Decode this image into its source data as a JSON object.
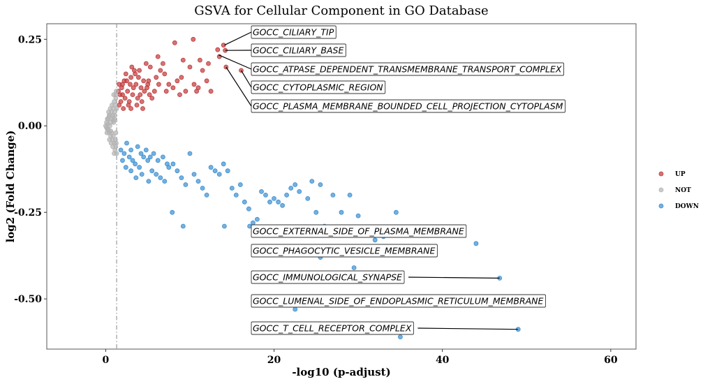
{
  "chart_data": {
    "type": "scatter",
    "title": "GSVA for Cellular Component in GO Database",
    "xlabel": "-log10 (p-adjust)",
    "ylabel": "log2 (Fold Change)",
    "xlim": [
      -7,
      63
    ],
    "ylim": [
      -0.645,
      0.295
    ],
    "xticks": [
      0,
      20,
      40,
      60
    ],
    "xtick_labels": [
      "0",
      "20",
      "40",
      "60"
    ],
    "yticks": [
      0.25,
      0,
      -0.25,
      -0.5
    ],
    "ytick_labels": [
      "0.25",
      "0.00",
      "-0.25",
      "-0.50"
    ],
    "threshold_x": 1.3,
    "grid": false,
    "legend": {
      "placement": "right",
      "entries": [
        {
          "label": "UP",
          "color": "#c0393b"
        },
        {
          "label": "NOT",
          "color": "#b3b3b3"
        },
        {
          "label": "DOWN",
          "color": "#3a8fd1"
        }
      ]
    },
    "colors": {
      "UP": "#c0393b",
      "NOT": "#b3b3b3",
      "DOWN": "#3a8fd1"
    },
    "series": [
      {
        "group": "UP",
        "points": [
          [
            2,
            0.12
          ],
          [
            2.5,
            0.13
          ],
          [
            3,
            0.14
          ],
          [
            3.2,
            0.09
          ],
          [
            2.8,
            0.07
          ],
          [
            3.5,
            0.15
          ],
          [
            4,
            0.16
          ],
          [
            4.2,
            0.11
          ],
          [
            4.5,
            0.13
          ],
          [
            5,
            0.12
          ],
          [
            5.2,
            0.09
          ],
          [
            5.5,
            0.08
          ],
          [
            5.8,
            0.1
          ],
          [
            6,
            0.14
          ],
          [
            6.5,
            0.16
          ],
          [
            7,
            0.15
          ],
          [
            7.5,
            0.12
          ],
          [
            8,
            0.11
          ],
          [
            8.5,
            0.13
          ],
          [
            9,
            0.14
          ],
          [
            9.5,
            0.1
          ],
          [
            10,
            0.17
          ],
          [
            10.5,
            0.12
          ],
          [
            11,
            0.11
          ],
          [
            12,
            0.13
          ],
          [
            12.5,
            0.1
          ],
          [
            4.8,
            0.18
          ],
          [
            5.3,
            0.17
          ],
          [
            6.2,
            0.2
          ],
          [
            6.8,
            0.18
          ],
          [
            8.2,
            0.24
          ],
          [
            9.2,
            0.19
          ],
          [
            10.4,
            0.25
          ],
          [
            11.2,
            0.19
          ],
          [
            12.2,
            0.18
          ],
          [
            13.3,
            0.22
          ],
          [
            13.5,
            0.2
          ],
          [
            14,
            0.233
          ],
          [
            14.2,
            0.218
          ],
          [
            14.3,
            0.17
          ],
          [
            16.1,
            0.16
          ],
          [
            1.6,
            0.06
          ],
          [
            1.8,
            0.07
          ],
          [
            1.7,
            0.09
          ],
          [
            2.1,
            0.05
          ],
          [
            2.3,
            0.08
          ],
          [
            2.6,
            0.1
          ],
          [
            2.9,
            0.12
          ],
          [
            3.3,
            0.11
          ],
          [
            3.6,
            0.12
          ],
          [
            3.8,
            0.08
          ],
          [
            4.1,
            0.09
          ],
          [
            4.3,
            0.07
          ],
          [
            4.6,
            0.1
          ],
          [
            4.9,
            0.11
          ],
          [
            5.1,
            0.13
          ],
          [
            1.9,
            0.11
          ],
          [
            2.2,
            0.13
          ],
          [
            2.4,
            0.15
          ],
          [
            3.1,
            0.17
          ],
          [
            3.4,
            0.16
          ],
          [
            3.9,
            0.14
          ],
          [
            1.5,
            0.1
          ],
          [
            1.6,
            0.12
          ],
          [
            2.0,
            0.09
          ],
          [
            2.7,
            0.06
          ],
          [
            3.0,
            0.05
          ],
          [
            3.7,
            0.06
          ],
          [
            4.4,
            0.05
          ],
          [
            6.3,
            0.12
          ],
          [
            7.2,
            0.1
          ],
          [
            8.8,
            0.09
          ],
          [
            11.5,
            0.16
          ],
          [
            10.8,
            0.1
          ]
        ]
      },
      {
        "group": "NOT",
        "points": [
          [
            0,
            0
          ],
          [
            0.1,
            0.01
          ],
          [
            0.2,
            -0.01
          ],
          [
            0.3,
            0.02
          ],
          [
            0.4,
            -0.02
          ],
          [
            0.5,
            0.03
          ],
          [
            0.6,
            -0.03
          ],
          [
            0.7,
            0.04
          ],
          [
            0.8,
            -0.04
          ],
          [
            0.9,
            0.05
          ],
          [
            1.0,
            -0.05
          ],
          [
            1.1,
            0.06
          ],
          [
            1.2,
            -0.06
          ],
          [
            0.5,
            0.0
          ],
          [
            0.3,
            -0.01
          ],
          [
            0.8,
            0.02
          ],
          [
            1.0,
            0.07
          ],
          [
            1.1,
            -0.07
          ],
          [
            1.2,
            0.08
          ],
          [
            0.6,
            0.01
          ],
          [
            0.4,
            0.03
          ],
          [
            0.7,
            -0.02
          ],
          [
            0.9,
            -0.03
          ],
          [
            1.05,
            0.04
          ],
          [
            1.15,
            -0.04
          ],
          [
            0.2,
            0.02
          ],
          [
            0.15,
            -0.02
          ],
          [
            0.95,
            0.09
          ],
          [
            1.25,
            0.1
          ],
          [
            1.3,
            -0.08
          ],
          [
            0.85,
            -0.06
          ],
          [
            0.75,
            0.06
          ],
          [
            0.65,
            -0.05
          ],
          [
            0.55,
            0.05
          ],
          [
            0.45,
            -0.04
          ],
          [
            0.35,
            0.04
          ],
          [
            1.0,
            -0.08
          ],
          [
            1.2,
            0.09
          ],
          [
            1.1,
            0.03
          ],
          [
            1.2,
            -0.02
          ],
          [
            0.95,
            0.01
          ],
          [
            0.85,
            0.03
          ],
          [
            1.3,
            0.05
          ],
          [
            1.25,
            -0.05
          ],
          [
            1.0,
            0.02
          ],
          [
            0.1,
            -0.005
          ],
          [
            0.25,
            0.005
          ],
          [
            0.6,
            -0.015
          ],
          [
            0.9,
            0.015
          ]
        ]
      },
      {
        "group": "DOWN",
        "points": [
          [
            1.8,
            -0.07
          ],
          [
            2.2,
            -0.08
          ],
          [
            2.8,
            -0.09
          ],
          [
            3.2,
            -0.1
          ],
          [
            3.5,
            -0.11
          ],
          [
            4,
            -0.12
          ],
          [
            4.5,
            -0.09
          ],
          [
            5,
            -0.1
          ],
          [
            5.5,
            -0.13
          ],
          [
            6,
            -0.14
          ],
          [
            6.5,
            -0.15
          ],
          [
            7,
            -0.16
          ],
          [
            7.5,
            -0.12
          ],
          [
            8,
            -0.11
          ],
          [
            8.5,
            -0.13
          ],
          [
            9,
            -0.15
          ],
          [
            9.5,
            -0.17
          ],
          [
            10,
            -0.08
          ],
          [
            10.5,
            -0.14
          ],
          [
            11,
            -0.16
          ],
          [
            11.5,
            -0.18
          ],
          [
            12,
            -0.2
          ],
          [
            12.5,
            -0.12
          ],
          [
            13,
            -0.13
          ],
          [
            13.5,
            -0.14
          ],
          [
            14,
            -0.11
          ],
          [
            14.5,
            -0.13
          ],
          [
            15,
            -0.18
          ],
          [
            15.5,
            -0.2
          ],
          [
            16,
            -0.17
          ],
          [
            16.5,
            -0.22
          ],
          [
            17,
            -0.24
          ],
          [
            17.5,
            -0.28
          ],
          [
            18,
            -0.27
          ],
          [
            18.5,
            -0.19
          ],
          [
            19,
            -0.2
          ],
          [
            19.5,
            -0.22
          ],
          [
            20,
            -0.21
          ],
          [
            20.5,
            -0.22
          ],
          [
            21,
            -0.23
          ],
          [
            21.5,
            -0.2
          ],
          [
            22,
            -0.18
          ],
          [
            22.5,
            -0.17
          ],
          [
            23,
            -0.19
          ],
          [
            24,
            -0.21
          ],
          [
            24.5,
            -0.16
          ],
          [
            25,
            -0.25
          ],
          [
            25.5,
            -0.17
          ],
          [
            26,
            -0.29
          ],
          [
            27,
            -0.2
          ],
          [
            28,
            -0.25
          ],
          [
            29,
            -0.2
          ],
          [
            30,
            -0.26
          ],
          [
            31,
            -0.3
          ],
          [
            32,
            -0.33
          ],
          [
            32.5,
            -0.3
          ],
          [
            33,
            -0.32
          ],
          [
            34,
            -0.31
          ],
          [
            34.5,
            -0.25
          ],
          [
            36,
            -0.3
          ],
          [
            44,
            -0.34
          ],
          [
            25.5,
            -0.38
          ],
          [
            29.5,
            -0.41
          ],
          [
            22.5,
            -0.53
          ],
          [
            35,
            -0.61
          ],
          [
            46.8,
            -0.44
          ],
          [
            49,
            -0.588
          ],
          [
            2.5,
            -0.05
          ],
          [
            3,
            -0.07
          ],
          [
            3.8,
            -0.06
          ],
          [
            4.2,
            -0.08
          ],
          [
            4.8,
            -0.07
          ],
          [
            5.3,
            -0.09
          ],
          [
            5.7,
            -0.08
          ],
          [
            6.2,
            -0.1
          ],
          [
            6.8,
            -0.09
          ],
          [
            7.3,
            -0.11
          ],
          [
            2.0,
            -0.1
          ],
          [
            2.4,
            -0.12
          ],
          [
            3.0,
            -0.13
          ],
          [
            3.6,
            -0.15
          ],
          [
            4.3,
            -0.14
          ],
          [
            5.1,
            -0.16
          ],
          [
            7.9,
            -0.25
          ],
          [
            9.2,
            -0.29
          ],
          [
            14.1,
            -0.29
          ],
          [
            17.1,
            -0.29
          ]
        ]
      }
    ],
    "annotations": [
      {
        "label": "GOCC_CILIARY_TIP",
        "point": [
          14.1,
          0.233
        ]
      },
      {
        "label": "GOCC_CILIARY_BASE",
        "point": [
          14.2,
          0.218
        ]
      },
      {
        "label": "GOCC_ATPASE_DEPENDENT_TRANSMEMBRANE_TRANSPORT_COMPLEX",
        "point": [
          13.4,
          0.205
        ]
      },
      {
        "label": "GOCC_CYTOPLASMIC_REGION",
        "point": [
          16.1,
          0.16
        ]
      },
      {
        "label": "GOCC_PLASMA_MEMBRANE_BOUNDED_CELL_PROJECTION_CYTOPLASM",
        "point": [
          14.3,
          0.17
        ]
      },
      {
        "label": "GOCC_EXTERNAL_SIDE_OF_PLASMA_MEMBRANE",
        "point": null
      },
      {
        "label": "GOCC_PHAGOCYTIC_VESICLE_MEMBRANE",
        "point": null
      },
      {
        "label": "GOCC_IMMUNOLOGICAL_SYNAPSE",
        "point": [
          46.8,
          -0.44
        ]
      },
      {
        "label": "GOCC_LUMENAL_SIDE_OF_ENDOPLASMIC_RETICULUM_MEMBRANE",
        "point": null
      },
      {
        "label": "GOCC_T_CELL_RECEPTOR_COMPLEX",
        "point": [
          49,
          -0.588
        ]
      }
    ]
  }
}
